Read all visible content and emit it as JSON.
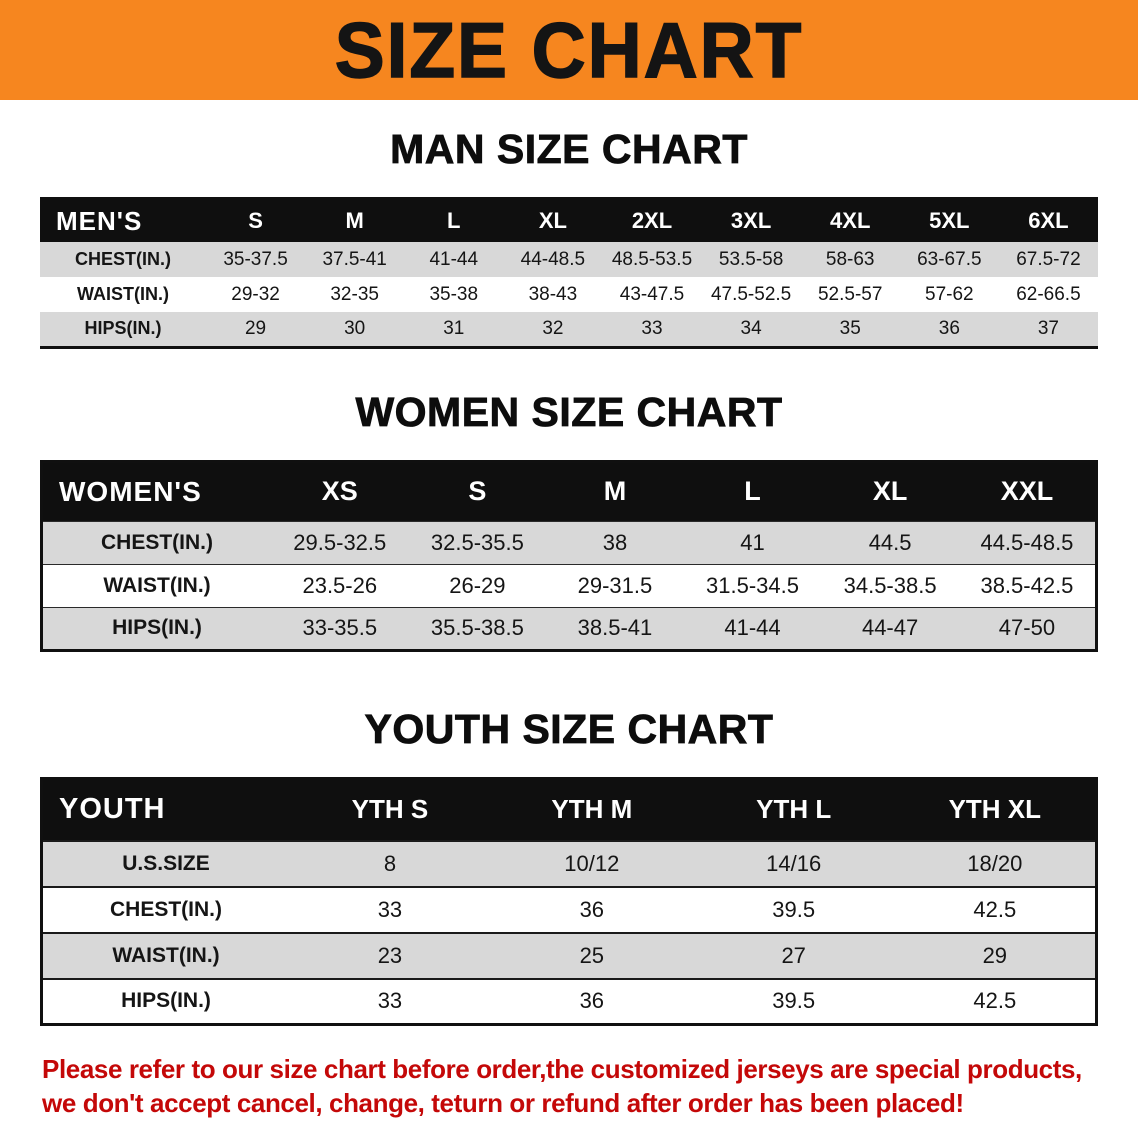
{
  "banner": {
    "title": "SIZE CHART"
  },
  "colors": {
    "banner_bg": "#F6861F",
    "header_bg": "#0F0F0F",
    "row_alt": "#D8D8D8",
    "note_red": "#C40808"
  },
  "sections": {
    "men": {
      "heading": "MAN SIZE CHART",
      "table": {
        "header": [
          "MEN'S",
          "S",
          "M",
          "L",
          "XL",
          "2XL",
          "3XL",
          "4XL",
          "5XL",
          "6XL"
        ],
        "rows": [
          [
            "CHEST(IN.)",
            "35-37.5",
            "37.5-41",
            "41-44",
            "44-48.5",
            "48.5-53.5",
            "53.5-58",
            "58-63",
            "63-67.5",
            "67.5-72"
          ],
          [
            "WAIST(IN.)",
            "29-32",
            "32-35",
            "35-38",
            "38-43",
            "43-47.5",
            "47.5-52.5",
            "52.5-57",
            "57-62",
            "62-66.5"
          ],
          [
            "HIPS(IN.)",
            "29",
            "30",
            "31",
            "32",
            "33",
            "34",
            "35",
            "36",
            "37"
          ]
        ]
      }
    },
    "women": {
      "heading": "WOMEN SIZE CHART",
      "table": {
        "header": [
          "WOMEN'S",
          "XS",
          "S",
          "M",
          "L",
          "XL",
          "XXL"
        ],
        "rows": [
          [
            "CHEST(IN.)",
            "29.5-32.5",
            "32.5-35.5",
            "38",
            "41",
            "44.5",
            "44.5-48.5"
          ],
          [
            "WAIST(IN.)",
            "23.5-26",
            "26-29",
            "29-31.5",
            "31.5-34.5",
            "34.5-38.5",
            "38.5-42.5"
          ],
          [
            "HIPS(IN.)",
            "33-35.5",
            "35.5-38.5",
            "38.5-41",
            "41-44",
            "44-47",
            "47-50"
          ]
        ]
      }
    },
    "youth": {
      "heading": "YOUTH SIZE CHART",
      "table": {
        "header": [
          "YOUTH",
          "YTH S",
          "YTH M",
          "YTH L",
          "YTH XL"
        ],
        "rows": [
          [
            "U.S.SIZE",
            "8",
            "10/12",
            "14/16",
            "18/20"
          ],
          [
            "CHEST(IN.)",
            "33",
            "36",
            "39.5",
            "42.5"
          ],
          [
            "WAIST(IN.)",
            "23",
            "25",
            "27",
            "29"
          ],
          [
            "HIPS(IN.)",
            "33",
            "36",
            "39.5",
            "42.5"
          ]
        ]
      }
    }
  },
  "note": {
    "line1": "Please refer to our size chart before order,the customized jerseys are special products,",
    "line2": "we don't accept cancel, change, teturn or refund after order has been placed!"
  }
}
